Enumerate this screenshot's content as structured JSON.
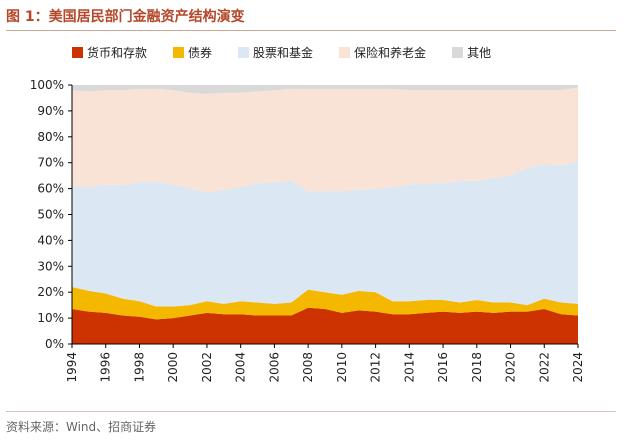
{
  "figure": {
    "title": "图 1：美国居民部门金融资产结构演变",
    "source": "资料来源：Wind、招商证券"
  },
  "chart_data": {
    "type": "area",
    "stacked": true,
    "x": [
      1994,
      1995,
      1996,
      1997,
      1998,
      1999,
      2000,
      2001,
      2002,
      2003,
      2004,
      2005,
      2006,
      2007,
      2008,
      2009,
      2010,
      2011,
      2012,
      2013,
      2014,
      2015,
      2016,
      2017,
      2018,
      2019,
      2020,
      2021,
      2022,
      2023,
      2024
    ],
    "xticks": [
      "1994",
      "1996",
      "1998",
      "2000",
      "2002",
      "2004",
      "2006",
      "2008",
      "2010",
      "2012",
      "2014",
      "2016",
      "2018",
      "2020",
      "2022",
      "2024"
    ],
    "ylim": [
      0,
      100
    ],
    "yticks": [
      "0%",
      "10%",
      "20%",
      "30%",
      "40%",
      "50%",
      "60%",
      "70%",
      "80%",
      "90%",
      "100%"
    ],
    "legend_position": "top",
    "series": [
      {
        "name": "货币和存款",
        "color": "#cc3300",
        "values": [
          13.5,
          12.5,
          12,
          11,
          10.5,
          9.5,
          10,
          11,
          12,
          11.5,
          11.5,
          11,
          11,
          11,
          14,
          13.5,
          12,
          13,
          12.5,
          11.5,
          11.5,
          12,
          12.5,
          12,
          12.5,
          12,
          12.5,
          12.5,
          13.5,
          11.5,
          11
        ]
      },
      {
        "name": "债券",
        "color": "#f5b800",
        "values": [
          8.5,
          8,
          7.5,
          6.5,
          6,
          5,
          4.5,
          4,
          4.5,
          4,
          5,
          5,
          4.5,
          5,
          7,
          6.5,
          7,
          7.5,
          7.5,
          5,
          5,
          5,
          4.5,
          4,
          4.5,
          4,
          3.5,
          2.5,
          4,
          4.5,
          4.5
        ]
      },
      {
        "name": "股票和基金",
        "color": "#dbe7f3",
        "values": [
          39,
          40,
          42,
          44,
          46,
          48,
          47,
          45,
          42,
          44,
          44,
          46,
          47,
          47,
          38,
          39,
          40,
          39,
          40,
          44,
          45,
          45,
          45,
          47,
          46,
          48,
          49,
          53,
          52,
          53,
          55
        ]
      },
      {
        "name": "保险和养老金",
        "color": "#f9e3d6",
        "values": [
          37,
          37,
          36.5,
          36.5,
          36,
          36,
          36.5,
          37,
          38,
          37.5,
          36.5,
          35.5,
          35.5,
          35.5,
          39.5,
          39.5,
          39.5,
          39,
          38.5,
          38,
          36.5,
          36,
          36,
          35,
          35,
          34,
          33,
          30,
          28.5,
          29,
          28.5
        ]
      },
      {
        "name": "其他",
        "color": "#d9d9d9",
        "values": [
          2,
          2.5,
          2,
          2,
          1.5,
          1.5,
          2,
          3,
          3.5,
          3,
          3,
          2.5,
          2,
          1.5,
          1.5,
          1.5,
          1.5,
          1.5,
          1.5,
          1.5,
          2,
          2,
          2,
          2,
          2,
          2,
          2,
          2,
          2,
          2,
          1
        ]
      }
    ]
  }
}
